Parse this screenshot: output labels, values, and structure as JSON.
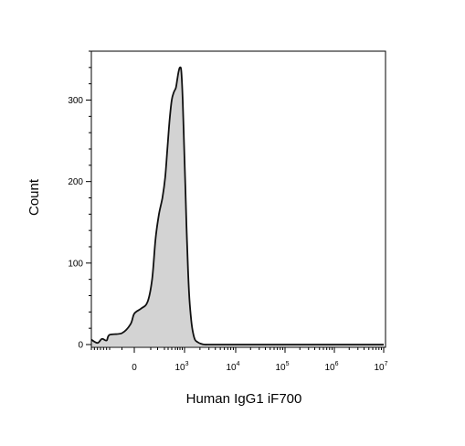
{
  "chart_data": {
    "type": "area",
    "title": "",
    "xlabel": "Human IgG1 iF700",
    "ylabel": "Count",
    "x_scale": "biexponential",
    "ylim": [
      0,
      360
    ],
    "y_ticks": [
      {
        "value": 0,
        "label": "0"
      },
      {
        "value": 100,
        "label": "100"
      },
      {
        "value": 200,
        "label": "200"
      },
      {
        "value": 300,
        "label": "300"
      }
    ],
    "x_ticks": [
      {
        "value": 0,
        "base": "0",
        "exp": ""
      },
      {
        "value": 1000,
        "base": "10",
        "exp": "3"
      },
      {
        "value": 10000,
        "base": "10",
        "exp": "4"
      },
      {
        "value": 100000,
        "base": "10",
        "exp": "5"
      },
      {
        "value": 1000000,
        "base": "10",
        "exp": "6"
      },
      {
        "value": 10000000,
        "base": "10",
        "exp": "7"
      }
    ],
    "fill_color": "#d3d3d3",
    "line_color": "#111111",
    "grid": false,
    "series": [
      {
        "x": [
          -800,
          -600,
          -450,
          -300,
          -200,
          -100,
          -30,
          0,
          40,
          80,
          120,
          170,
          220,
          270,
          320,
          380,
          440,
          500,
          560,
          620,
          680,
          740,
          800,
          860,
          920,
          980,
          1040,
          1100,
          1170,
          1250,
          1350,
          1460,
          1600,
          1800,
          2100,
          2500,
          3000,
          4000,
          6000,
          10000,
          100000,
          1000000,
          10000000
        ],
        "y": [
          6,
          2,
          7,
          5,
          12,
          14,
          25,
          38,
          44,
          52,
          80,
          130,
          160,
          180,
          205,
          240,
          275,
          300,
          310,
          315,
          325,
          335,
          340,
          335,
          300,
          245,
          190,
          140,
          92,
          55,
          30,
          15,
          6,
          3,
          1,
          0,
          0,
          0,
          0,
          0,
          0,
          0,
          0
        ]
      }
    ]
  }
}
